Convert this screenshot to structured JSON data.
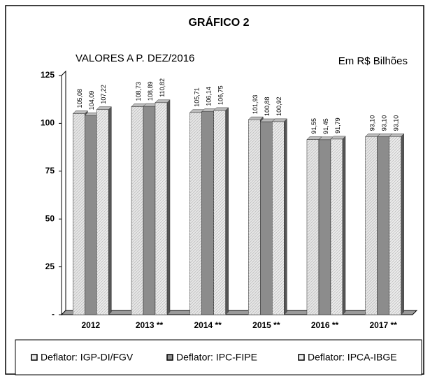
{
  "chart_data": {
    "type": "bar",
    "title": "GRÁFICO 2",
    "subtitle": "VALORES A P. DEZ/2016",
    "annotation": "Em R$ Bilhões",
    "categories": [
      "2012",
      "2013 **",
      "2014 **",
      "2015 **",
      "2016 **",
      "2017 **"
    ],
    "series": [
      {
        "name": "Deflator: IGP-DI/FGV",
        "color": "#e6e6e6",
        "values": [
          105.08,
          108.73,
          105.71,
          101.93,
          91.55,
          93.1
        ],
        "value_labels": [
          "105,08",
          "108,73",
          "105,71",
          "101,93",
          "91,55",
          "93,10"
        ]
      },
      {
        "name": "Deflator: IPC-FIPE",
        "color": "#8c8c8c",
        "values": [
          104.09,
          108.89,
          106.14,
          100.88,
          91.45,
          93.1
        ],
        "value_labels": [
          "104,09",
          "108,89",
          "106,14",
          "100,88",
          "91,45",
          "93,10"
        ]
      },
      {
        "name": "Deflator: IPCA-IBGE",
        "color": "#ececec",
        "values": [
          107.22,
          110.82,
          106.75,
          100.92,
          91.79,
          93.1
        ],
        "value_labels": [
          "107,22",
          "110,82",
          "106,75",
          "100,92",
          "91,79",
          "93,10"
        ]
      }
    ],
    "ylim": [
      0,
      125
    ],
    "yticks": [
      {
        "value": 0,
        "label": "-"
      },
      25,
      50,
      75,
      100,
      125
    ]
  }
}
